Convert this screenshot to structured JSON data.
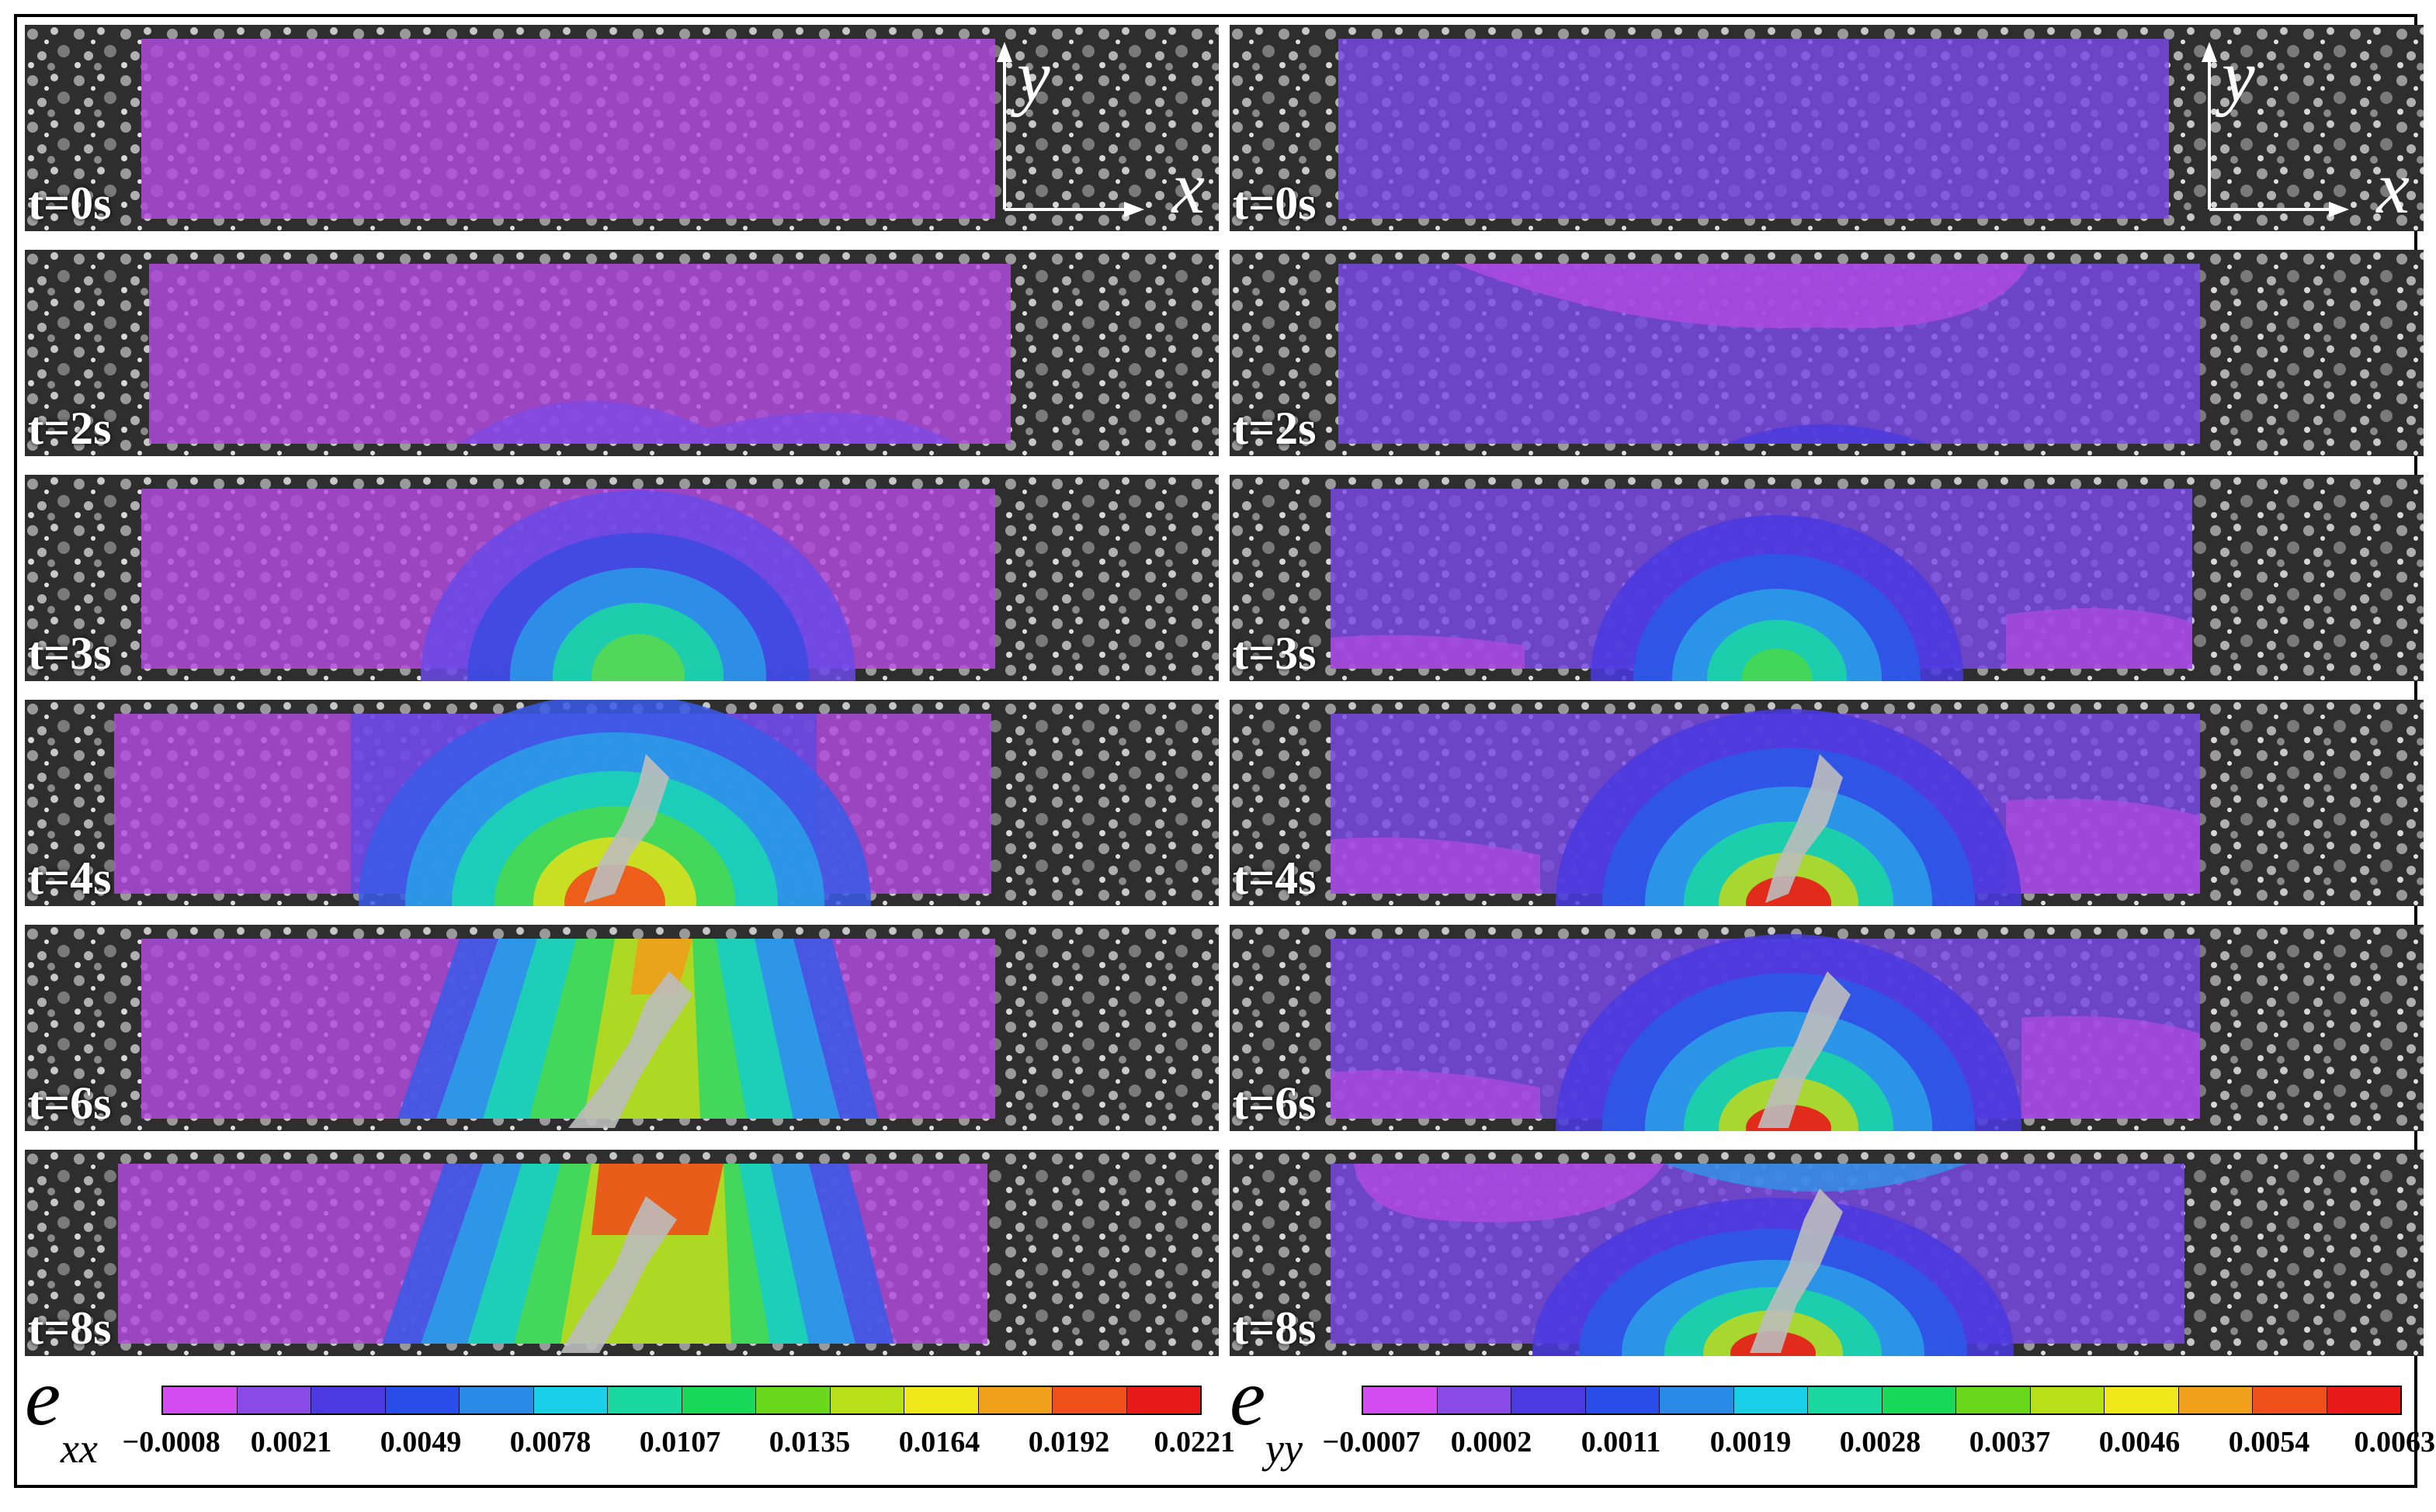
{
  "panels": [
    {
      "axis_x": "x",
      "axis_y": "y",
      "frames": [
        {
          "label": "t=0s"
        },
        {
          "label": "t=2s"
        },
        {
          "label": "t=3s"
        },
        {
          "label": "t=4s"
        },
        {
          "label": "t=6s"
        },
        {
          "label": "t=8s"
        }
      ],
      "colorbar": {
        "symbol": "e",
        "subscript": "xx",
        "ticks": [
          "−0.0008",
          "0.0021",
          "0.0049",
          "0.0078",
          "0.0107",
          "0.0135",
          "0.0164",
          "0.0192",
          "0.0221"
        ],
        "colors": [
          "#d24cf0",
          "#8a4ae8",
          "#4a3ae0",
          "#2a4ce8",
          "#2a8ae8",
          "#1ad0e8",
          "#1ad8a0",
          "#1ad85a",
          "#6ad81a",
          "#b8e01a",
          "#f0e81a",
          "#f0a01a",
          "#f0501a",
          "#e81a1a"
        ]
      }
    },
    {
      "axis_x": "x",
      "axis_y": "y",
      "frames": [
        {
          "label": "t=0s"
        },
        {
          "label": "t=2s"
        },
        {
          "label": "t=3s"
        },
        {
          "label": "t=4s"
        },
        {
          "label": "t=6s"
        },
        {
          "label": "t=8s"
        }
      ],
      "colorbar": {
        "symbol": "e",
        "subscript": "yy",
        "ticks": [
          "−0.0007",
          "0.0002",
          "0.0011",
          "0.0019",
          "0.0028",
          "0.0037",
          "0.0046",
          "0.0054",
          "0.0063"
        ],
        "colors": [
          "#d24cf0",
          "#8a4ae8",
          "#4a3ae0",
          "#2a4ce8",
          "#2a8ae8",
          "#1ad0e8",
          "#1ad8a0",
          "#1ad85a",
          "#6ad81a",
          "#b8e01a",
          "#f0e81a",
          "#f0a01a",
          "#f0501a",
          "#e81a1a"
        ]
      }
    }
  ]
}
